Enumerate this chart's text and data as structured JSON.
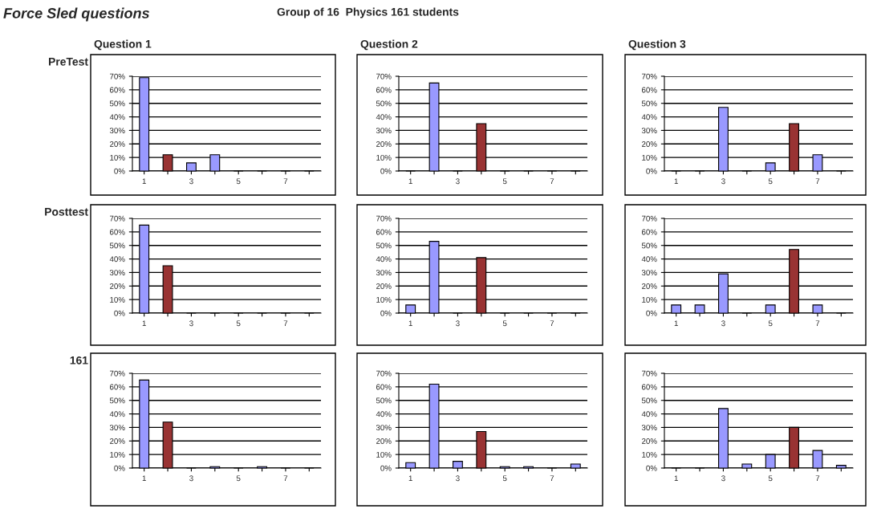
{
  "chart_data": [
    {
      "type": "bar",
      "title": "Question 1",
      "ylabel": "PreTest",
      "annotations": [
        "Force Sled questions",
        "Group of 16  Physics 161 students"
      ],
      "categories": [
        "1",
        null,
        "3",
        null,
        "5",
        null,
        "7",
        null
      ],
      "values": [
        69,
        12,
        6,
        12,
        0,
        0,
        0,
        0
      ],
      "colors": [
        "#9999ff",
        "#993333",
        "#9999ff",
        "#9999ff",
        "#9999ff",
        "#9999ff",
        "#9999ff",
        "#9999ff"
      ],
      "ylim": [
        0,
        70
      ],
      "yticks": [
        {
          "value": 0,
          "label": "0%"
        },
        {
          "value": 10,
          "label": "10%"
        },
        {
          "value": 20,
          "label": "20%"
        },
        {
          "value": 30,
          "label": "30%"
        },
        {
          "value": 40,
          "label": "40%"
        },
        {
          "value": 50,
          "label": "50%"
        },
        {
          "value": 60,
          "label": "60%"
        },
        {
          "value": 70,
          "label": "70%"
        }
      ],
      "grid": "y",
      "legend": false
    },
    {
      "type": "bar",
      "title": "Question 2",
      "categories": [
        "1",
        null,
        "3",
        null,
        "5",
        null,
        "7",
        null
      ],
      "values": [
        0,
        65,
        0,
        35,
        0,
        0,
        0,
        0
      ],
      "colors": [
        "#9999ff",
        "#9999ff",
        "#9999ff",
        "#993333",
        "#9999ff",
        "#9999ff",
        "#9999ff",
        "#9999ff"
      ],
      "ylim": [
        0,
        70
      ],
      "yticks": [
        {
          "value": 0,
          "label": "0%"
        },
        {
          "value": 10,
          "label": "10%"
        },
        {
          "value": 20,
          "label": "20%"
        },
        {
          "value": 30,
          "label": "30%"
        },
        {
          "value": 40,
          "label": "40%"
        },
        {
          "value": 50,
          "label": "50%"
        },
        {
          "value": 60,
          "label": "60%"
        },
        {
          "value": 70,
          "label": "70%"
        }
      ],
      "grid": "y",
      "legend": false
    },
    {
      "type": "bar",
      "title": "Question 3",
      "categories": [
        "1",
        null,
        "3",
        null,
        "5",
        null,
        "7",
        null
      ],
      "values": [
        0,
        0,
        47,
        0,
        6,
        35,
        12,
        0
      ],
      "colors": [
        "#9999ff",
        "#9999ff",
        "#9999ff",
        "#9999ff",
        "#9999ff",
        "#993333",
        "#9999ff",
        "#9999ff"
      ],
      "ylim": [
        0,
        70
      ],
      "yticks": [
        {
          "value": 0,
          "label": "0%"
        },
        {
          "value": 10,
          "label": "10%"
        },
        {
          "value": 20,
          "label": "20%"
        },
        {
          "value": 30,
          "label": "30%"
        },
        {
          "value": 40,
          "label": "40%"
        },
        {
          "value": 50,
          "label": "50%"
        },
        {
          "value": 60,
          "label": "60%"
        },
        {
          "value": 70,
          "label": "70%"
        }
      ],
      "grid": "y",
      "legend": false
    },
    {
      "type": "bar",
      "ylabel": "Posttest",
      "categories": [
        "1",
        null,
        "3",
        null,
        "5",
        null,
        "7",
        null
      ],
      "values": [
        65,
        35,
        0,
        0,
        0,
        0,
        0,
        0
      ],
      "colors": [
        "#9999ff",
        "#993333",
        "#9999ff",
        "#9999ff",
        "#9999ff",
        "#9999ff",
        "#9999ff",
        "#9999ff"
      ],
      "ylim": [
        0,
        70
      ],
      "yticks": [
        {
          "value": 0,
          "label": "0%"
        },
        {
          "value": 10,
          "label": "10%"
        },
        {
          "value": 20,
          "label": "20%"
        },
        {
          "value": 30,
          "label": "30%"
        },
        {
          "value": 40,
          "label": "40%"
        },
        {
          "value": 50,
          "label": "50%"
        },
        {
          "value": 60,
          "label": "60%"
        },
        {
          "value": 70,
          "label": "70%"
        }
      ],
      "grid": "y",
      "legend": false
    },
    {
      "type": "bar",
      "categories": [
        "1",
        null,
        "3",
        null,
        "5",
        null,
        "7",
        null
      ],
      "values": [
        6,
        53,
        0,
        41,
        0,
        0,
        0,
        0
      ],
      "colors": [
        "#9999ff",
        "#9999ff",
        "#9999ff",
        "#993333",
        "#9999ff",
        "#9999ff",
        "#9999ff",
        "#9999ff"
      ],
      "ylim": [
        0,
        70
      ],
      "yticks": [
        {
          "value": 0,
          "label": "0%"
        },
        {
          "value": 10,
          "label": "10%"
        },
        {
          "value": 20,
          "label": "20%"
        },
        {
          "value": 30,
          "label": "30%"
        },
        {
          "value": 40,
          "label": "40%"
        },
        {
          "value": 50,
          "label": "50%"
        },
        {
          "value": 60,
          "label": "60%"
        },
        {
          "value": 70,
          "label": "70%"
        }
      ],
      "grid": "y",
      "legend": false
    },
    {
      "type": "bar",
      "categories": [
        "1",
        null,
        "3",
        null,
        "5",
        null,
        "7",
        null
      ],
      "values": [
        6,
        6,
        29,
        0,
        6,
        47,
        6,
        0
      ],
      "colors": [
        "#9999ff",
        "#9999ff",
        "#9999ff",
        "#9999ff",
        "#9999ff",
        "#993333",
        "#9999ff",
        "#9999ff"
      ],
      "ylim": [
        0,
        70
      ],
      "yticks": [
        {
          "value": 0,
          "label": "0%"
        },
        {
          "value": 10,
          "label": "10%"
        },
        {
          "value": 20,
          "label": "20%"
        },
        {
          "value": 30,
          "label": "30%"
        },
        {
          "value": 40,
          "label": "40%"
        },
        {
          "value": 50,
          "label": "50%"
        },
        {
          "value": 60,
          "label": "60%"
        },
        {
          "value": 70,
          "label": "70%"
        }
      ],
      "grid": "y",
      "legend": false
    },
    {
      "type": "bar",
      "ylabel": "161",
      "categories": [
        "1",
        null,
        "3",
        null,
        "5",
        null,
        "7",
        null
      ],
      "values": [
        65,
        34,
        0,
        1,
        0,
        1,
        0,
        0
      ],
      "colors": [
        "#9999ff",
        "#993333",
        "#9999ff",
        "#9999ff",
        "#9999ff",
        "#9999ff",
        "#9999ff",
        "#9999ff"
      ],
      "ylim": [
        0,
        70
      ],
      "yticks": [
        {
          "value": 0,
          "label": "0%"
        },
        {
          "value": 10,
          "label": "10%"
        },
        {
          "value": 20,
          "label": "20%"
        },
        {
          "value": 30,
          "label": "30%"
        },
        {
          "value": 40,
          "label": "40%"
        },
        {
          "value": 50,
          "label": "50%"
        },
        {
          "value": 60,
          "label": "60%"
        },
        {
          "value": 70,
          "label": "70%"
        }
      ],
      "grid": "y",
      "legend": false
    },
    {
      "type": "bar",
      "categories": [
        "1",
        null,
        "3",
        null,
        "5",
        null,
        "7",
        null
      ],
      "values": [
        4,
        62,
        5,
        27,
        1,
        1,
        0,
        3
      ],
      "colors": [
        "#9999ff",
        "#9999ff",
        "#9999ff",
        "#993333",
        "#9999ff",
        "#9999ff",
        "#9999ff",
        "#9999ff"
      ],
      "ylim": [
        0,
        70
      ],
      "yticks": [
        {
          "value": 0,
          "label": "0%"
        },
        {
          "value": 10,
          "label": "10%"
        },
        {
          "value": 20,
          "label": "20%"
        },
        {
          "value": 30,
          "label": "30%"
        },
        {
          "value": 40,
          "label": "40%"
        },
        {
          "value": 50,
          "label": "50%"
        },
        {
          "value": 60,
          "label": "60%"
        },
        {
          "value": 70,
          "label": "70%"
        }
      ],
      "grid": "y",
      "legend": false
    },
    {
      "type": "bar",
      "categories": [
        "1",
        null,
        "3",
        null,
        "5",
        null,
        "7",
        null
      ],
      "values": [
        0,
        0,
        44,
        3,
        10,
        30,
        13,
        2
      ],
      "colors": [
        "#9999ff",
        "#9999ff",
        "#9999ff",
        "#9999ff",
        "#9999ff",
        "#993333",
        "#9999ff",
        "#9999ff"
      ],
      "ylim": [
        0,
        70
      ],
      "yticks": [
        {
          "value": 0,
          "label": "0%"
        },
        {
          "value": 10,
          "label": "10%"
        },
        {
          "value": 20,
          "label": "20%"
        },
        {
          "value": 30,
          "label": "30%"
        },
        {
          "value": 40,
          "label": "40%"
        },
        {
          "value": 50,
          "label": "50%"
        },
        {
          "value": 60,
          "label": "60%"
        },
        {
          "value": 70,
          "label": "70%"
        }
      ],
      "grid": "y",
      "legend": false
    }
  ]
}
